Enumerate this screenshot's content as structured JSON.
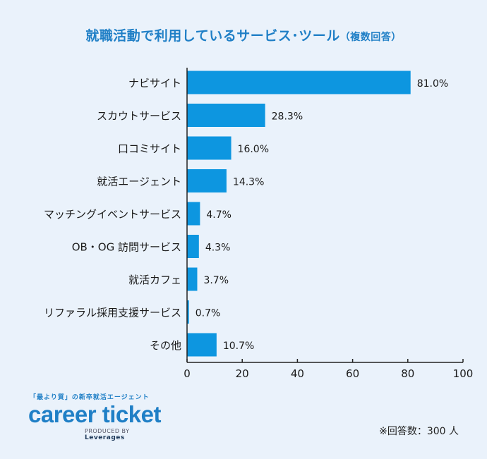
{
  "title": "就職活動で利用しているサービス･ツール",
  "title_note": "（複数回答）",
  "chart_data": {
    "type": "bar",
    "orientation": "horizontal",
    "categories": [
      "ナビサイト",
      "スカウトサービス",
      "口コミサイト",
      "就活エージェント",
      "マッチングイベントサービス",
      "OB・OG 訪問サービス",
      "就活カフェ",
      "リファラル採用支援サービス",
      "その他"
    ],
    "values": [
      81.0,
      28.3,
      16.0,
      14.3,
      4.7,
      4.3,
      3.7,
      0.7,
      10.7
    ],
    "value_labels": [
      "81.0%",
      "28.3%",
      "16.0%",
      "14.3%",
      "4.7%",
      "4.3%",
      "3.7%",
      "0.7%",
      "10.7%"
    ],
    "xlim": [
      0,
      100
    ],
    "xticks": [
      0,
      20,
      40,
      60,
      80,
      100
    ],
    "bar_color": "#0d96e0",
    "grid": false
  },
  "brand": {
    "tagline": "「最より質」の新卒就活エージェント",
    "logo": "career ticket",
    "byline_prefix": "PRODUCED BY",
    "byline_company": "Leverages"
  },
  "respondents": "※回答数：300 人",
  "colors": {
    "accent": "#1f7fc6",
    "background": "#eaf2fb"
  }
}
